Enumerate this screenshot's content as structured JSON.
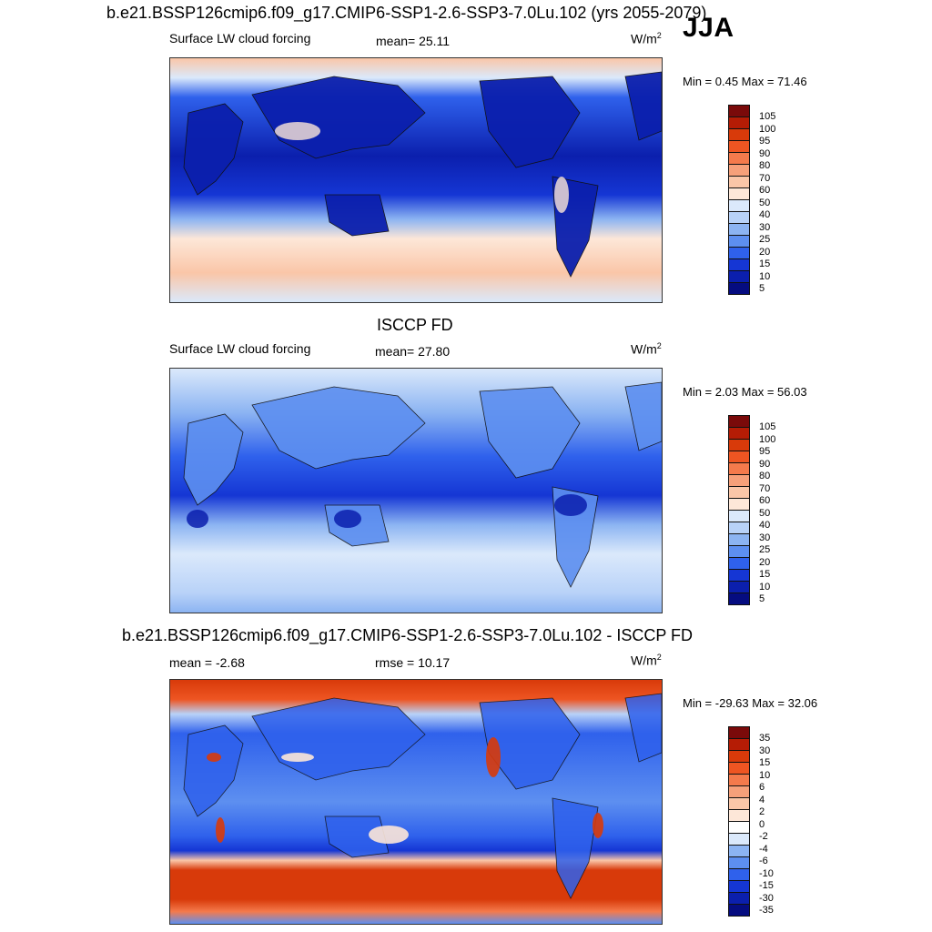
{
  "header": {
    "title": "b.e21.BSSP126cmip6.f09_g17.CMIP6-SSP1-2.6-SSP3-7.0Lu.102 (yrs 2055-2079)",
    "season": "JJA"
  },
  "panels": [
    {
      "id": "model",
      "variable": "Surface LW cloud forcing",
      "stat": "mean=  25.11",
      "units_base": "W/m",
      "units_exp": "2",
      "minmax": "Min =   0.45 Max =  71.46",
      "colorbar": {
        "labels": [
          "105",
          "100",
          "95",
          "90",
          "80",
          "70",
          "60",
          "50",
          "40",
          "30",
          "25",
          "20",
          "15",
          "10",
          "5"
        ],
        "colors": [
          "#7a0a0a",
          "#b51c05",
          "#d83a0a",
          "#ee5522",
          "#f47a4c",
          "#f6a07a",
          "#fac6a8",
          "#fde7d8",
          "#dbe9fb",
          "#b8d2f8",
          "#8cb4f2",
          "#5d8ff0",
          "#2f61ec",
          "#1536d4",
          "#0b1fad",
          "#050c80"
        ]
      },
      "ocean_color": "#1f45d8"
    },
    {
      "id": "obs",
      "heading": "ISCCP FD",
      "variable": "Surface LW cloud forcing",
      "stat": "mean=  27.80",
      "units_base": "W/m",
      "units_exp": "2",
      "minmax": "Min =   2.03 Max =  56.03",
      "colorbar": {
        "labels": [
          "105",
          "100",
          "95",
          "90",
          "80",
          "70",
          "60",
          "50",
          "40",
          "30",
          "25",
          "20",
          "15",
          "10",
          "5"
        ],
        "colors": [
          "#7a0a0a",
          "#b51c05",
          "#d83a0a",
          "#ee5522",
          "#f47a4c",
          "#f6a07a",
          "#fac6a8",
          "#fde7d8",
          "#dbe9fb",
          "#b8d2f8",
          "#8cb4f2",
          "#5d8ff0",
          "#2f61ec",
          "#1536d4",
          "#0b1fad",
          "#050c80"
        ]
      },
      "ocean_color": "#3f6de8"
    },
    {
      "id": "diff",
      "heading": "b.e21.BSSP126cmip6.f09_g17.CMIP6-SSP1-2.6-SSP3-7.0Lu.102 - ISCCP FD",
      "variable": "mean =  -2.68",
      "stat": "rmse =  10.17",
      "units_base": "W/m",
      "units_exp": "2",
      "minmax": "Min = -29.63 Max =  32.06",
      "colorbar": {
        "labels": [
          "35",
          "30",
          "15",
          "10",
          "6",
          "4",
          "2",
          "0",
          "-2",
          "-4",
          "-6",
          "-10",
          "-15",
          "-30",
          "-35"
        ],
        "colors": [
          "#7a0a0a",
          "#b51c05",
          "#d83a0a",
          "#ee5522",
          "#f47a4c",
          "#f6a07a",
          "#fac6a8",
          "#fde7d8",
          "#ffffff",
          "#dbe9fb",
          "#8cb4f2",
          "#5d8ff0",
          "#2f61ec",
          "#1536d4",
          "#0b1fad",
          "#050c80"
        ]
      },
      "ocean_color": "#3a63e6"
    }
  ]
}
